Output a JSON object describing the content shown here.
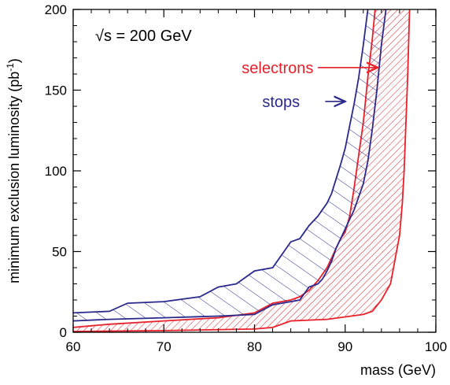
{
  "chart_data": {
    "type": "area",
    "title": "",
    "xlabel": "mass (GeV)",
    "ylabel_main": "minimum exclusion luminosity (pb",
    "ylabel_sup": "-1",
    "ylabel_close": ")",
    "xlim": [
      60,
      100
    ],
    "ylim": [
      0,
      200
    ],
    "x_ticks": [
      60,
      70,
      80,
      90,
      100
    ],
    "y_ticks": [
      0,
      50,
      100,
      150,
      200
    ],
    "grid": false,
    "annotation": "√s = 200 GeV",
    "series": [
      {
        "name": "stops",
        "color": "#2a2a8c",
        "upper": [
          [
            60,
            12
          ],
          [
            62,
            12.5
          ],
          [
            64,
            13
          ],
          [
            66,
            18
          ],
          [
            70,
            19
          ],
          [
            74,
            22
          ],
          [
            76,
            28
          ],
          [
            78,
            30
          ],
          [
            80,
            38
          ],
          [
            82,
            40
          ],
          [
            84,
            56
          ],
          [
            85,
            58
          ],
          [
            86,
            66
          ],
          [
            87,
            72
          ],
          [
            87.5,
            76
          ],
          [
            88,
            80
          ],
          [
            88.5,
            86
          ],
          [
            89,
            95
          ],
          [
            89.5,
            104
          ],
          [
            90,
            114
          ],
          [
            90.5,
            128
          ],
          [
            91,
            142
          ],
          [
            91.5,
            158
          ],
          [
            92,
            178
          ],
          [
            92.5,
            200
          ]
        ],
        "lower": [
          [
            60,
            7
          ],
          [
            64,
            8
          ],
          [
            70,
            9
          ],
          [
            76,
            10
          ],
          [
            80,
            11
          ],
          [
            82,
            17
          ],
          [
            84,
            19
          ],
          [
            85,
            20
          ],
          [
            86,
            28
          ],
          [
            87,
            30
          ],
          [
            87.5,
            33
          ],
          [
            88,
            38
          ],
          [
            88.5,
            44
          ],
          [
            89,
            52
          ],
          [
            89.5,
            58
          ],
          [
            90,
            64
          ],
          [
            90.5,
            70
          ],
          [
            91,
            76
          ],
          [
            91.5,
            84
          ],
          [
            92,
            92
          ],
          [
            92.5,
            106
          ],
          [
            93,
            126
          ],
          [
            93.5,
            150
          ],
          [
            94,
            178
          ],
          [
            94.5,
            200
          ]
        ]
      },
      {
        "name": "selectrons",
        "color": "#e8202a",
        "upper": [
          [
            60,
            3
          ],
          [
            62,
            4
          ],
          [
            64,
            5
          ],
          [
            70,
            7
          ],
          [
            76,
            9
          ],
          [
            80,
            12
          ],
          [
            82,
            18
          ],
          [
            84,
            20
          ],
          [
            85,
            22
          ],
          [
            86,
            26
          ],
          [
            87,
            32
          ],
          [
            88,
            40
          ],
          [
            88.5,
            46
          ],
          [
            89,
            52
          ],
          [
            89.5,
            58
          ],
          [
            90,
            62
          ],
          [
            90.5,
            72
          ],
          [
            91,
            90
          ],
          [
            91.5,
            110
          ],
          [
            92,
            130
          ],
          [
            92.5,
            158
          ],
          [
            93,
            182
          ],
          [
            93.3,
            200
          ]
        ],
        "lower": [
          [
            60,
            0.5
          ],
          [
            70,
            1
          ],
          [
            80,
            2
          ],
          [
            82,
            3
          ],
          [
            84,
            7
          ],
          [
            88,
            8
          ],
          [
            92,
            11
          ],
          [
            93,
            13
          ],
          [
            94,
            20
          ],
          [
            95,
            30
          ],
          [
            95.5,
            45
          ],
          [
            96,
            60
          ],
          [
            96.3,
            80
          ],
          [
            96.5,
            100
          ],
          [
            96.7,
            130
          ],
          [
            96.9,
            160
          ],
          [
            97.1,
            200
          ]
        ]
      }
    ],
    "arrows": [
      {
        "label": "selectrons",
        "color": "#e8202a",
        "text_x": 86.5,
        "text_y": 164,
        "from_x": 87.0,
        "to_x": 93.6,
        "y": 164
      },
      {
        "label": "stops",
        "color": "#2a2a8c",
        "text_x": 85.0,
        "text_y": 143,
        "from_x": 87.8,
        "to_x": 90.0,
        "y": 143
      }
    ]
  }
}
